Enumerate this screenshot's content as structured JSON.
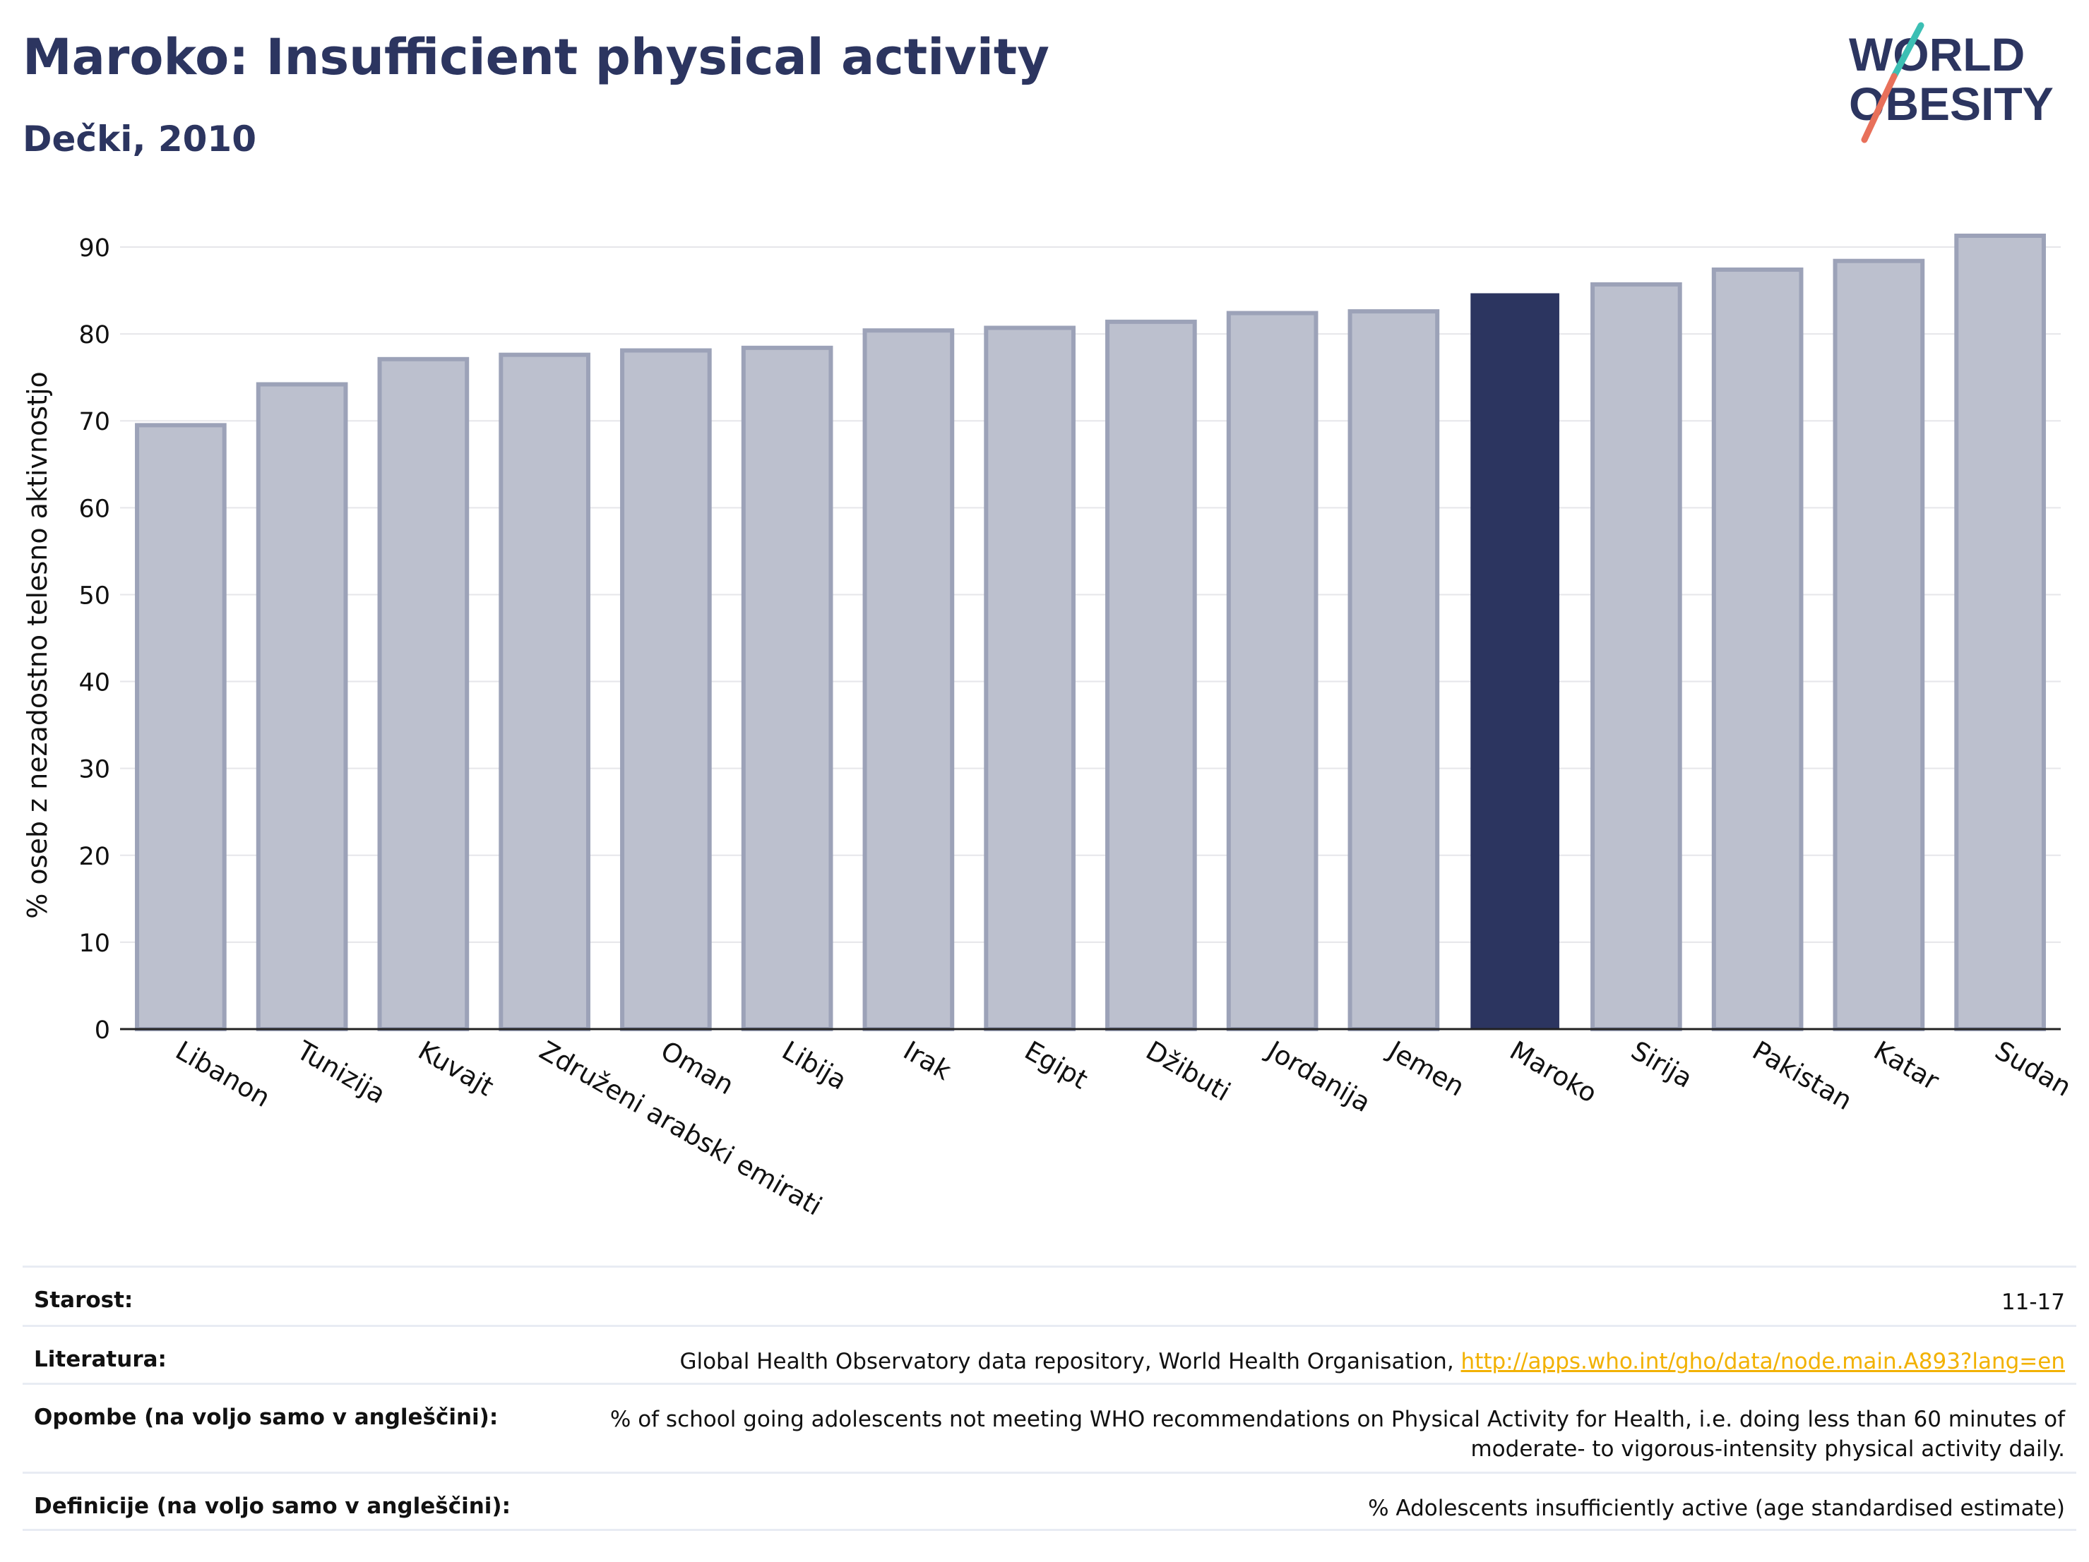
{
  "header": {
    "title": "Maroko: Insufficient physical activity",
    "subtitle": "Dečki, 2010",
    "logo_text": "WORLD OBESITY"
  },
  "colors": {
    "title": "#2c3560",
    "bar_default_fill": "#bcc0ce",
    "bar_default_stroke": "#9ca2b8",
    "bar_highlight": "#2c3560",
    "grid": "#e6e6ea",
    "link": "#f2b100",
    "logo_teal": "#3cbfb4",
    "logo_coral": "#e8705a"
  },
  "chart_data": {
    "type": "bar",
    "title": "Maroko: Insufficient physical activity",
    "subtitle": "Dečki, 2010",
    "xlabel": "",
    "ylabel": "% oseb z nezadostno telesno aktivnostjo",
    "ylim": [
      0,
      90
    ],
    "yticks": [
      0,
      10,
      20,
      30,
      40,
      50,
      60,
      70,
      80,
      90
    ],
    "grid": true,
    "highlight": "Maroko",
    "categories": [
      "Libanon",
      "Tunizija",
      "Kuvajt",
      "Združeni arabski emirati",
      "Oman",
      "Libija",
      "Irak",
      "Egipt",
      "Džibuti",
      "Jordanija",
      "Jemen",
      "Maroko",
      "Sirija",
      "Pakistan",
      "Katar",
      "Sudan"
    ],
    "values": [
      69.5,
      74.2,
      77.1,
      77.6,
      78.1,
      78.4,
      80.4,
      80.7,
      81.4,
      82.4,
      82.6,
      84.6,
      85.7,
      87.4,
      88.4,
      91.3
    ]
  },
  "info_table": {
    "rows": [
      {
        "label": "Starost:",
        "value": "11-17"
      },
      {
        "label": "Literatura:",
        "value": "Global Health Observatory data repository, World Health Organisation, ",
        "link": "http://apps.who.int/gho/data/node.main.A893?lang=en"
      },
      {
        "label": "Opombe (na voljo samo v angleščini):",
        "value": "% of school going adolescents not meeting WHO recommendations on Physical Activity for Health, i.e. doing less than 60 minutes of moderate- to vigorous-intensity physical activity daily."
      },
      {
        "label": "Definicije (na voljo samo v angleščini):",
        "value": "% Adolescents insufficiently active (age standardised estimate)"
      }
    ]
  }
}
